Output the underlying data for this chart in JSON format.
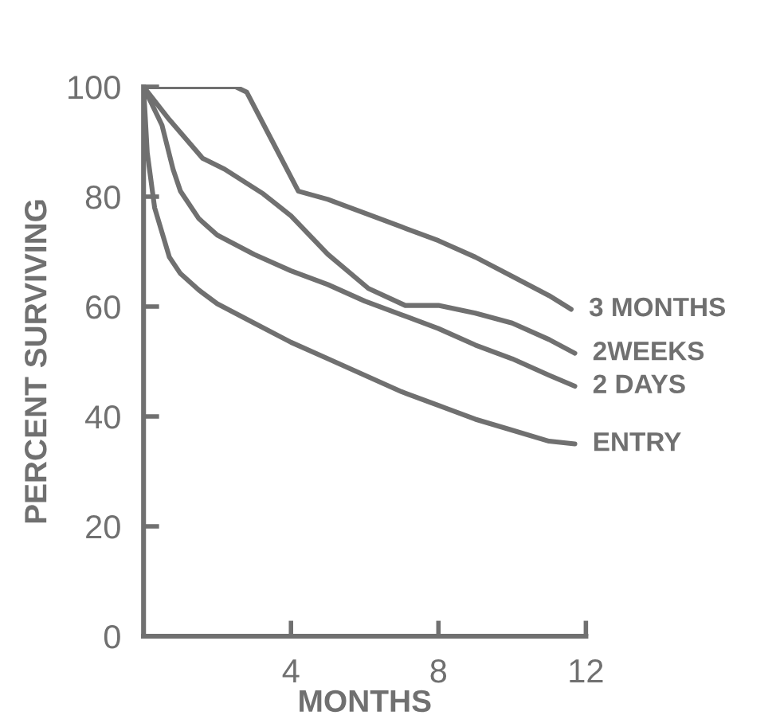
{
  "chart_data": {
    "type": "line",
    "xlabel": "MONTHS",
    "ylabel": "PERCENT SURVIVING",
    "xlim": [
      0,
      12
    ],
    "ylim": [
      0,
      100
    ],
    "xticks": [
      4,
      8,
      12
    ],
    "yticks": [
      0,
      20,
      40,
      60,
      80,
      100
    ],
    "grid": false,
    "legend": false,
    "marker": "none",
    "line_style": "solid",
    "series": [
      {
        "name": "3 MONTHS",
        "color": "#707070",
        "x": [
          0,
          2.5,
          2.8,
          3.5,
          4.2,
          5,
          6,
          7,
          8,
          9,
          10,
          11,
          11.6
        ],
        "values": [
          100,
          100,
          99,
          90,
          81,
          79.5,
          77,
          74.5,
          72,
          69,
          65.5,
          62,
          59.5
        ]
      },
      {
        "name": "2WEEKS",
        "color": "#707070",
        "x": [
          0,
          0.7,
          1.6,
          2.2,
          3.25,
          4,
          5,
          6.1,
          7.1,
          7.5,
          8,
          9,
          10,
          11,
          11.7
        ],
        "values": [
          100,
          94,
          87,
          85,
          80.5,
          76.5,
          69.5,
          63.3,
          60.2,
          60.2,
          60.2,
          58.8,
          57,
          54,
          51.5
        ]
      },
      {
        "name": "2 DAYS",
        "color": "#707070",
        "x": [
          0,
          0.5,
          0.8,
          1,
          1.5,
          2,
          3,
          4,
          5,
          6,
          7,
          8,
          9,
          10,
          11,
          11.7
        ],
        "values": [
          100,
          93,
          85,
          81,
          76,
          73,
          69.5,
          66.5,
          64,
          61,
          58.5,
          56,
          53,
          50.5,
          47.5,
          45.5
        ]
      },
      {
        "name": "ENTRY",
        "color": "#707070",
        "x": [
          0,
          0.1,
          0.3,
          0.7,
          1,
          1.5,
          2,
          3,
          4,
          5,
          6,
          7,
          8,
          9,
          10,
          11,
          11.7
        ],
        "values": [
          100,
          88,
          78,
          69,
          66,
          63,
          60.5,
          57,
          53.5,
          50.5,
          47.5,
          44.5,
          42,
          39.5,
          37.5,
          35.5,
          35
        ]
      }
    ]
  }
}
